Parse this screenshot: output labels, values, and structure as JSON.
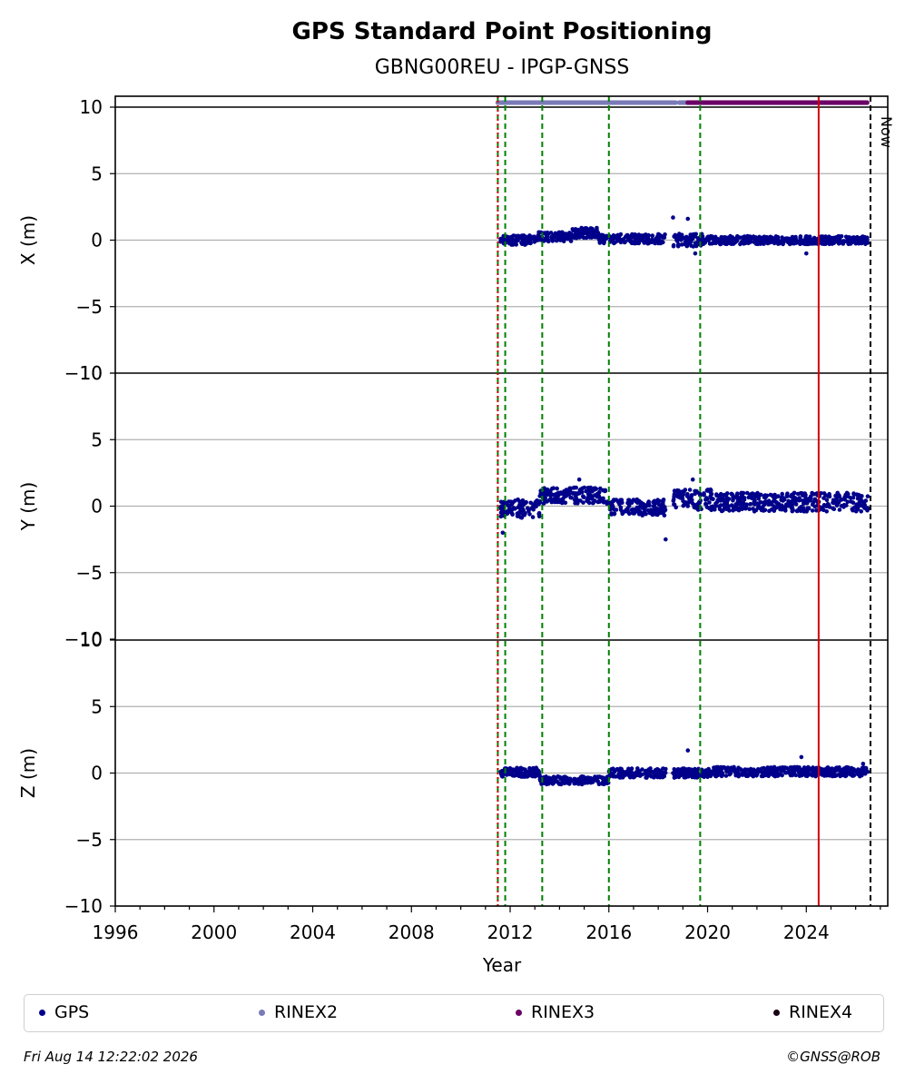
{
  "chart_data": {
    "type": "scatter",
    "title": "GPS Standard Point Positioning",
    "subtitle": "GBNG00REU - IPGP-GNSS",
    "xlabel": "Year",
    "xlim": [
      1996,
      2027.3
    ],
    "xticks": [
      1996,
      2000,
      2004,
      2008,
      2012,
      2016,
      2020,
      2024
    ],
    "panels": [
      {
        "ylabel": "X (m)",
        "ylim": [
          -10,
          10
        ],
        "yticks": [
          10,
          5,
          0,
          -5,
          -10
        ],
        "bands": [
          {
            "from": 2011.6,
            "to": 2013.1,
            "center": 0.0,
            "spread": 0.35
          },
          {
            "from": 2013.1,
            "to": 2014.5,
            "center": 0.25,
            "spread": 0.35
          },
          {
            "from": 2014.5,
            "to": 2015.6,
            "center": 0.55,
            "spread": 0.4
          },
          {
            "from": 2015.6,
            "to": 2018.3,
            "center": 0.1,
            "spread": 0.35
          },
          {
            "from": 2018.6,
            "to": 2019.8,
            "center": 0.0,
            "spread": 0.5
          },
          {
            "from": 2019.8,
            "to": 2026.5,
            "center": 0.0,
            "spread": 0.3
          }
        ],
        "outliers": [
          {
            "x": 2018.6,
            "y": 1.7
          },
          {
            "x": 2019.2,
            "y": 1.6
          },
          {
            "x": 2019.5,
            "y": -1.0
          },
          {
            "x": 2024.0,
            "y": -1.0
          }
        ]
      },
      {
        "ylabel": "Y (m)",
        "ylim": [
          -10,
          10
        ],
        "yticks": [
          10,
          5,
          0,
          -5,
          -10
        ],
        "bands": [
          {
            "from": 2011.6,
            "to": 2013.2,
            "center": -0.2,
            "spread": 0.7
          },
          {
            "from": 2013.2,
            "to": 2015.9,
            "center": 0.8,
            "spread": 0.6
          },
          {
            "from": 2015.9,
            "to": 2018.3,
            "center": -0.1,
            "spread": 0.6
          },
          {
            "from": 2018.6,
            "to": 2020.2,
            "center": 0.5,
            "spread": 0.8
          },
          {
            "from": 2020.2,
            "to": 2026.5,
            "center": 0.3,
            "spread": 0.7
          }
        ],
        "outliers": [
          {
            "x": 2011.7,
            "y": -2.0
          },
          {
            "x": 2018.3,
            "y": -2.5
          },
          {
            "x": 2014.8,
            "y": 2.0
          },
          {
            "x": 2019.4,
            "y": 2.0
          }
        ]
      },
      {
        "ylabel": "Z (m)",
        "ylim": [
          -10,
          10
        ],
        "yticks": [
          10,
          5,
          0,
          -5,
          -10
        ],
        "bands": [
          {
            "from": 2011.6,
            "to": 2013.2,
            "center": 0.05,
            "spread": 0.35
          },
          {
            "from": 2013.2,
            "to": 2016.0,
            "center": -0.55,
            "spread": 0.3
          },
          {
            "from": 2016.0,
            "to": 2018.3,
            "center": 0.0,
            "spread": 0.35
          },
          {
            "from": 2018.6,
            "to": 2020.2,
            "center": 0.0,
            "spread": 0.35
          },
          {
            "from": 2020.2,
            "to": 2026.5,
            "center": 0.1,
            "spread": 0.35
          }
        ],
        "outliers": [
          {
            "x": 2019.2,
            "y": 1.7
          },
          {
            "x": 2023.8,
            "y": 1.2
          },
          {
            "x": 2026.3,
            "y": 0.7
          }
        ]
      }
    ],
    "availability": [
      {
        "series": "RINEX2",
        "from": 2011.5,
        "to": 2018.7
      },
      {
        "series": "RINEX2",
        "from": 2018.85,
        "to": 2019.2
      },
      {
        "series": "RINEX3",
        "from": 2019.2,
        "to": 2026.5
      }
    ],
    "vlines": [
      {
        "x": 2011.5,
        "color": "#008000",
        "style": "dashed"
      },
      {
        "x": 2011.5,
        "color": "#d40000",
        "style": "dotted"
      },
      {
        "x": 2011.8,
        "color": "#008000",
        "style": "dashed"
      },
      {
        "x": 2013.3,
        "color": "#008000",
        "style": "dashed"
      },
      {
        "x": 2016.0,
        "color": "#008000",
        "style": "dashed"
      },
      {
        "x": 2019.7,
        "color": "#008000",
        "style": "dashed"
      },
      {
        "x": 2024.5,
        "color": "#d40000",
        "style": "solid"
      },
      {
        "x": 2026.6,
        "color": "#000000",
        "style": "dashed"
      }
    ],
    "now_label": "Now",
    "colors": {
      "GPS": "#00008b",
      "RINEX2": "#7b7bb8",
      "RINEX3": "#6b0066",
      "RINEX4": "#1a0014"
    },
    "grid": "horizontal",
    "legend_position": "bottom"
  },
  "legend": {
    "gps": "GPS",
    "rinex2": "RINEX2",
    "rinex3": "RINEX3",
    "rinex4": "RINEX4"
  },
  "footer": {
    "timestamp": "Fri Aug 14 12:22:02 2026",
    "copyright": "©GNSS@ROB"
  }
}
